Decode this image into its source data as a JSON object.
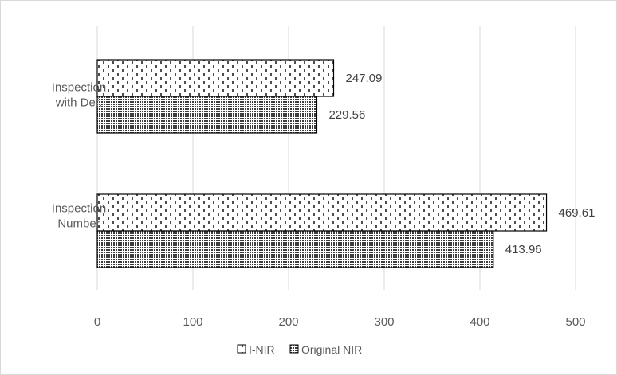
{
  "chart_data": {
    "type": "bar",
    "orientation": "horizontal",
    "categories": [
      [
        "Inspection",
        "Number"
      ],
      [
        "Inspection",
        "with Def."
      ]
    ],
    "series": [
      {
        "name": "I-NIR",
        "values": [
          469.61,
          247.09
        ],
        "labels": [
          "469.61",
          "247.09"
        ],
        "pattern": "dashed-vertical",
        "color": "#000000"
      },
      {
        "name": "Original NIR",
        "values": [
          413.96,
          229.56
        ],
        "labels": [
          "413.96",
          "229.56"
        ],
        "pattern": "crosshatch",
        "color": "#000000"
      }
    ],
    "xlim": [
      0,
      500
    ],
    "ticks": [
      0,
      100,
      200,
      300,
      400,
      500
    ],
    "tick_labels": [
      "0",
      "100",
      "200",
      "300",
      "400",
      "500"
    ],
    "grid": true,
    "legend": "bottom",
    "title": "",
    "xlabel": "",
    "ylabel": ""
  }
}
